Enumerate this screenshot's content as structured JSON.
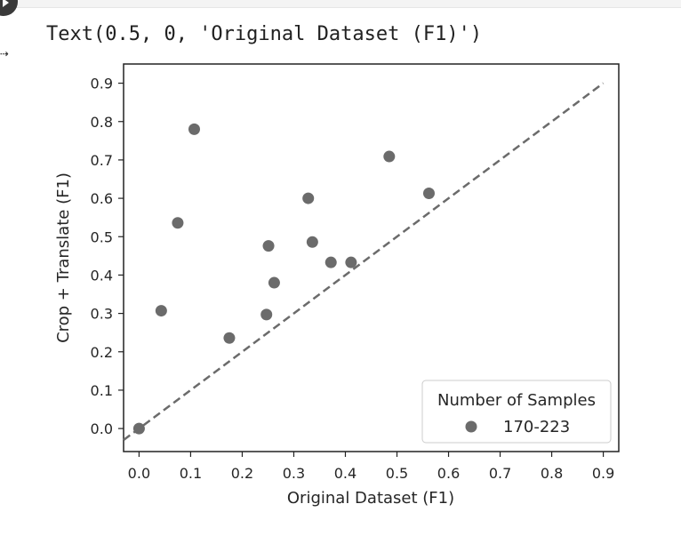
{
  "cell": {
    "output_text": "Text(0.5, 0, 'Original Dataset (F1)')",
    "output_icon": "output-arrow-icon",
    "run_icon": "play-icon"
  },
  "chart_data": {
    "type": "scatter",
    "title": "",
    "xlabel": "Original Dataset (F1)",
    "ylabel": "Crop + Translate (F1)",
    "xlim": [
      -0.03,
      0.93
    ],
    "ylim": [
      -0.06,
      0.95
    ],
    "xticks": [
      0.0,
      0.1,
      0.2,
      0.3,
      0.4,
      0.5,
      0.6,
      0.7,
      0.8,
      0.9
    ],
    "yticks": [
      0.0,
      0.1,
      0.2,
      0.3,
      0.4,
      0.5,
      0.6,
      0.7,
      0.8,
      0.9
    ],
    "tick_labels": [
      "0.0",
      "0.1",
      "0.2",
      "0.3",
      "0.4",
      "0.5",
      "0.6",
      "0.7",
      "0.8",
      "0.9"
    ],
    "grid": false,
    "legend": {
      "title": "Number of Samples",
      "placement": "lower-right",
      "entries": [
        "170-223"
      ]
    },
    "marker_color": "#6b6b6b",
    "line_color": "#6b6b6b",
    "series": [
      {
        "name": "170-223",
        "points": [
          [
            0.0,
            0.0
          ],
          [
            0.043,
            0.307
          ],
          [
            0.075,
            0.536
          ],
          [
            0.107,
            0.78
          ],
          [
            0.175,
            0.236
          ],
          [
            0.247,
            0.297
          ],
          [
            0.251,
            0.476
          ],
          [
            0.262,
            0.38
          ],
          [
            0.328,
            0.6
          ],
          [
            0.336,
            0.486
          ],
          [
            0.372,
            0.433
          ],
          [
            0.411,
            0.433
          ],
          [
            0.485,
            0.709
          ],
          [
            0.562,
            0.613
          ]
        ]
      }
    ],
    "reference_line": {
      "x": [
        -0.03,
        0.9
      ],
      "y": [
        -0.03,
        0.9
      ],
      "style": "dashed"
    }
  }
}
